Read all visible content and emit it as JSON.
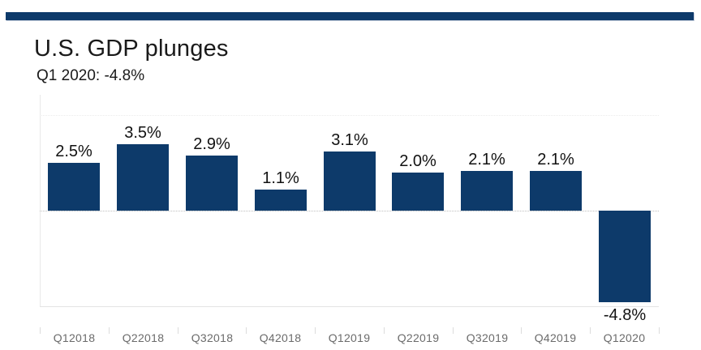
{
  "header": {
    "title": "U.S. GDP plunges",
    "subtitle": "Q1 2020: -4.8%"
  },
  "colors": {
    "bar": "#0d3a6a",
    "accent_bar": "#0d3a6a",
    "axis_label_gray": "#6b6b6b"
  },
  "chart_data": {
    "type": "bar",
    "title": "U.S. GDP plunges",
    "subtitle": "Q1 2020: -4.8%",
    "categories": [
      "Q12018",
      "Q22018",
      "Q32018",
      "Q42018",
      "Q12019",
      "Q22019",
      "Q32019",
      "Q42019",
      "Q12020"
    ],
    "values": [
      2.5,
      3.5,
      2.9,
      1.1,
      3.1,
      2.0,
      2.1,
      2.1,
      -4.8
    ],
    "data_labels": [
      "2.5%",
      "3.5%",
      "2.9%",
      "1.1%",
      "3.1%",
      "2.0%",
      "2.1%",
      "2.1%",
      "-4.8%"
    ],
    "xlabel": "",
    "ylabel": "",
    "ylim": [
      -5,
      5
    ],
    "gridlines_pct": [
      5,
      0,
      -5
    ],
    "grid_style": "dotted",
    "legend": "none",
    "bar_color": "#0d3a6a"
  }
}
